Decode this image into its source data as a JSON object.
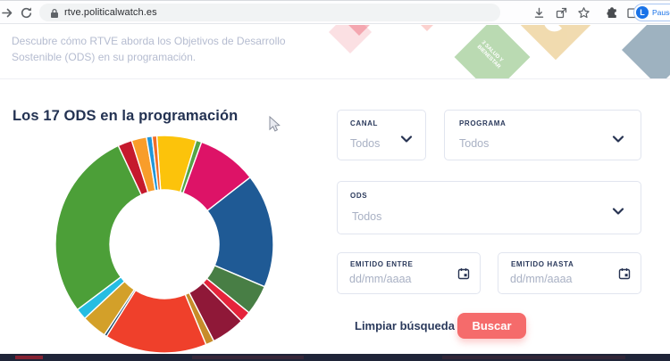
{
  "browser": {
    "url": "rtve.politicalwatch.es",
    "profile": {
      "initial": "L",
      "status": "Paused"
    }
  },
  "hero": {
    "description": "Descubre cómo RTVE aborda los Objetivos de Desarrollo Sostenible (ODS) en su programación.",
    "health_tile_label": "3 SALUD Y BIENESTAR"
  },
  "main": {
    "title": "Los 17 ODS en la programación"
  },
  "filters": {
    "canal": {
      "label": "CANAL",
      "value": "Todos"
    },
    "programa": {
      "label": "PROGRAMA",
      "value": "Todos"
    },
    "ods": {
      "label": "ODS",
      "value": "Todos"
    },
    "emitido_entre": {
      "label": "EMITIDO ENTRE",
      "placeholder": "dd/mm/aaaa"
    },
    "emitido_hasta": {
      "label": "EMITIDO HASTA",
      "placeholder": "dd/mm/aaaa"
    }
  },
  "actions": {
    "clear": "Limpiar búsqueda",
    "search": "Buscar"
  },
  "colors": {
    "accent": "#F56B6B",
    "navy": "#2B3A5C",
    "muted_text": "#A9B1C4"
  },
  "chart_data": {
    "type": "pie",
    "variant": "donut",
    "title": "Los 17 ODS en la programación",
    "legend": false,
    "start_angle_deg": -4,
    "note": "17 unlabeled SDG-colored segments; angular spans estimated from pixels, clockwise from 12 o'clock",
    "segments": [
      {
        "color": "#FCC30B",
        "degrees": 21,
        "percent": 5.8
      },
      {
        "color": "#55A546",
        "degrees": 3,
        "percent": 0.8
      },
      {
        "color": "#DD1367",
        "degrees": 32,
        "percent": 8.9
      },
      {
        "color": "#1F5A95",
        "degrees": 61,
        "percent": 16.9
      },
      {
        "color": "#487E45",
        "degrees": 16,
        "percent": 4.4
      },
      {
        "color": "#E5243B",
        "degrees": 6,
        "percent": 1.7
      },
      {
        "color": "#8F1838",
        "degrees": 18,
        "percent": 5.0
      },
      {
        "color": "#C78C2A",
        "degrees": 4.5,
        "percent": 1.3
      },
      {
        "color": "#EF402B",
        "degrees": 54.5,
        "percent": 15.1
      },
      {
        "color": "#19486A",
        "degrees": 1.5,
        "percent": 0.4
      },
      {
        "color": "#D3A029",
        "degrees": 13.5,
        "percent": 3.8
      },
      {
        "color": "#26BDE2",
        "degrees": 6,
        "percent": 1.7
      },
      {
        "color": "#4C9F38",
        "degrees": 102,
        "percent": 28.3
      },
      {
        "color": "#C5192D",
        "degrees": 7.5,
        "percent": 2.1
      },
      {
        "color": "#F89D2A",
        "degrees": 8,
        "percent": 2.2
      },
      {
        "color": "#2196D9",
        "degrees": 3,
        "percent": 0.8
      },
      {
        "color": "#F36D25",
        "degrees": 2.5,
        "percent": 0.7
      }
    ]
  }
}
